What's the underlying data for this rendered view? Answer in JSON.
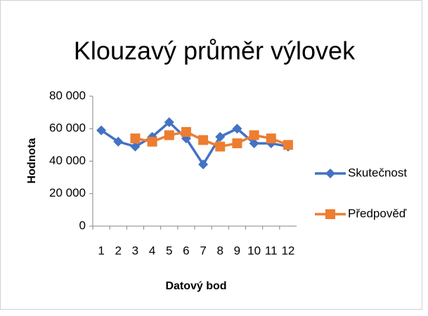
{
  "chart_data": {
    "type": "line",
    "title": "Klouzavý průměr výlovek",
    "x_label": "Datový bod",
    "y_label": "Hodnota",
    "categories": [
      "1",
      "2",
      "3",
      "4",
      "5",
      "6",
      "7",
      "8",
      "9",
      "10",
      "11",
      "12"
    ],
    "series": [
      {
        "name": "Skutečnost",
        "color": "#4472c4",
        "marker": "diamond",
        "values": [
          59000,
          52000,
          49000,
          55000,
          64000,
          54000,
          38000,
          55000,
          60000,
          51000,
          51000,
          49000
        ]
      },
      {
        "name": "Předpověď",
        "color": "#ed7d31",
        "marker": "square",
        "values": [
          null,
          null,
          54000,
          52000,
          56000,
          58000,
          53000,
          49000,
          51000,
          56000,
          54000,
          50000
        ]
      }
    ],
    "ylim": [
      0,
      80000
    ],
    "yticks": [
      0,
      {
        "value": 20000,
        "label": "20 000"
      },
      {
        "value": 40000,
        "label": "40 000"
      },
      {
        "value": 60000,
        "label": "60 000"
      },
      {
        "value": 80000,
        "label": "80 000"
      }
    ],
    "grid": false,
    "legend": "right"
  }
}
